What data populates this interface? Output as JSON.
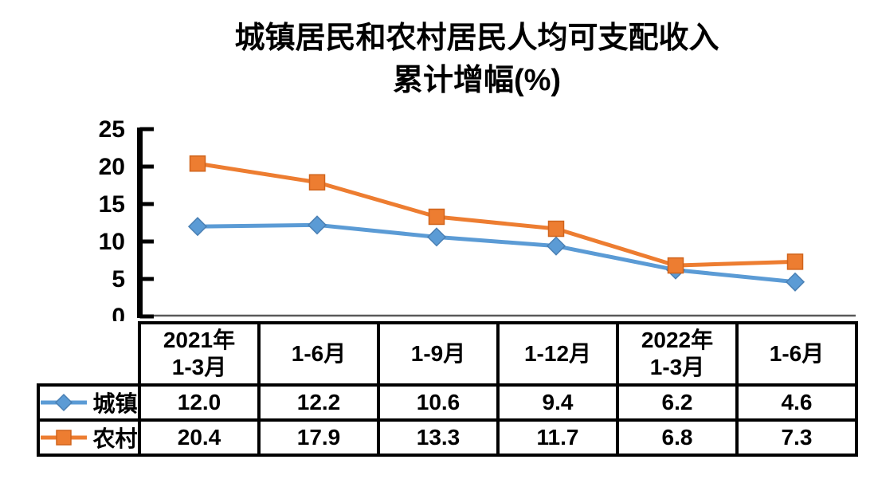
{
  "title": {
    "line1": "城镇居民和农村居民人均可支配收入",
    "line2": "累计增幅(%)"
  },
  "chart_data": {
    "type": "line",
    "categories": [
      "2021年\n1-3月",
      "1-6月",
      "1-9月",
      "1-12月",
      "2022年\n1-3月",
      "1-6月"
    ],
    "series": [
      {
        "name": "城镇",
        "marker": "diamond",
        "color": "#5B9BD5",
        "border_color": "#4A80B4",
        "values": [
          12.0,
          12.2,
          10.6,
          9.4,
          6.2,
          4.6
        ],
        "display": [
          "12.0",
          "12.2",
          "10.6",
          "9.4",
          "6.2",
          "4.6"
        ]
      },
      {
        "name": "农村",
        "marker": "square",
        "color": "#ED7D31",
        "border_color": "#D0641C",
        "values": [
          20.4,
          17.9,
          13.3,
          11.7,
          6.8,
          7.3
        ],
        "display": [
          "20.4",
          "17.9",
          "13.3",
          "11.7",
          "6.8",
          "7.3"
        ]
      }
    ],
    "ylim": [
      0,
      25
    ],
    "yticks": [
      0,
      5,
      10,
      15,
      20,
      25
    ],
    "grid": false,
    "legend_position": "table-left",
    "axis_color": "#000000",
    "xaxis_line_color": "#595959"
  }
}
